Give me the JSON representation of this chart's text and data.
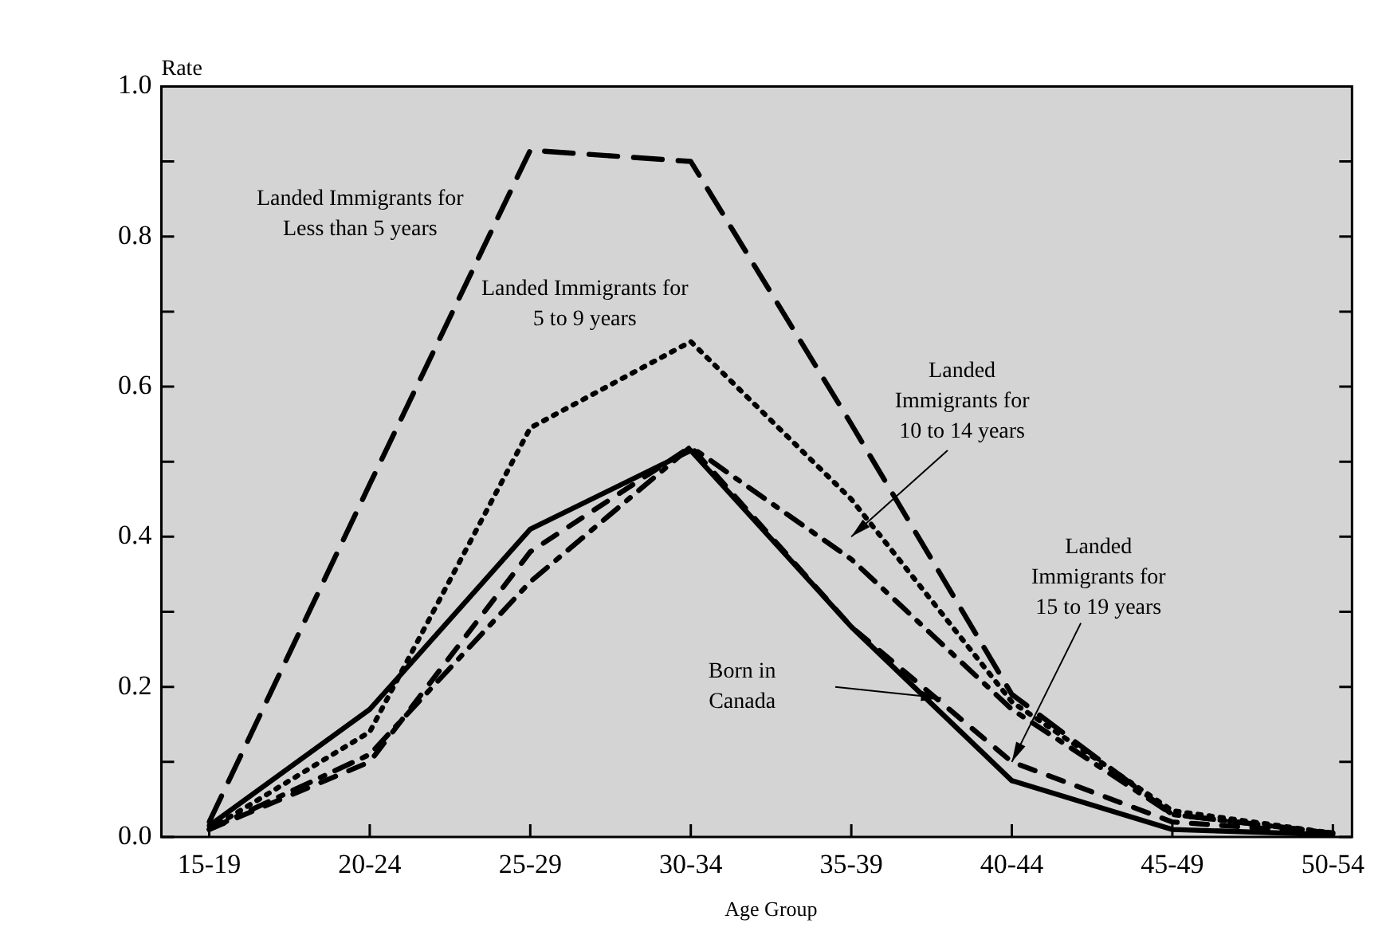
{
  "chart_data": {
    "type": "line",
    "xlabel": "Age Group",
    "ylabel": "Rate",
    "categories": [
      "15-19",
      "20-24",
      "25-29",
      "30-34",
      "35-39",
      "40-44",
      "45-49",
      "50-54"
    ],
    "ylim": [
      0,
      1
    ],
    "yticks": [
      {
        "value": 0,
        "label": "0.0"
      },
      {
        "value": 0.1,
        "label": null
      },
      {
        "value": 0.2,
        "label": "0.2"
      },
      {
        "value": 0.3,
        "label": null
      },
      {
        "value": 0.4,
        "label": "0.4"
      },
      {
        "value": 0.5,
        "label": null
      },
      {
        "value": 0.6,
        "label": "0.6"
      },
      {
        "value": 0.7,
        "label": null
      },
      {
        "value": 0.8,
        "label": "0.8"
      },
      {
        "value": 0.9,
        "label": null
      },
      {
        "value": 1,
        "label": "1.0"
      }
    ],
    "grid": false,
    "legend": false,
    "marker": "none",
    "series": [
      {
        "name": "Landed Immigrants for Less than 5 years",
        "color": "#000000",
        "line_style": "dashed",
        "values": [
          0.02,
          0.47,
          0.915,
          0.9,
          0.55,
          0.19,
          0.03,
          0.005
        ]
      },
      {
        "name": "Landed Immigrants for 5 to 9 years",
        "color": "#000000",
        "line_style": "dotted",
        "values": [
          0.01,
          0.14,
          0.545,
          0.66,
          0.45,
          0.18,
          0.035,
          0.005
        ]
      },
      {
        "color": "#000000",
        "line_style": "dashed",
        "values": [
          0.01,
          0.11,
          0.34,
          0.52,
          0.37,
          0.17,
          0.03,
          0.005
        ]
      },
      {
        "color": "#000000",
        "line_style": "dashed",
        "values": [
          0.01,
          0.1,
          0.38,
          0.52,
          0.28,
          0.1,
          0.02,
          0.005
        ]
      },
      {
        "color": "#000000",
        "line_style": "solid",
        "values": [
          0.015,
          0.17,
          0.41,
          0.515,
          0.28,
          0.075,
          0.01,
          0.003
        ]
      }
    ],
    "annotations": [
      "Landed Immigrants for 10 to 14 years",
      {
        "text": "Landed Immigrants for 15 to 19 years",
        "x": "40-44",
        "y": 0.1
      },
      "Born in Canada"
    ]
  }
}
